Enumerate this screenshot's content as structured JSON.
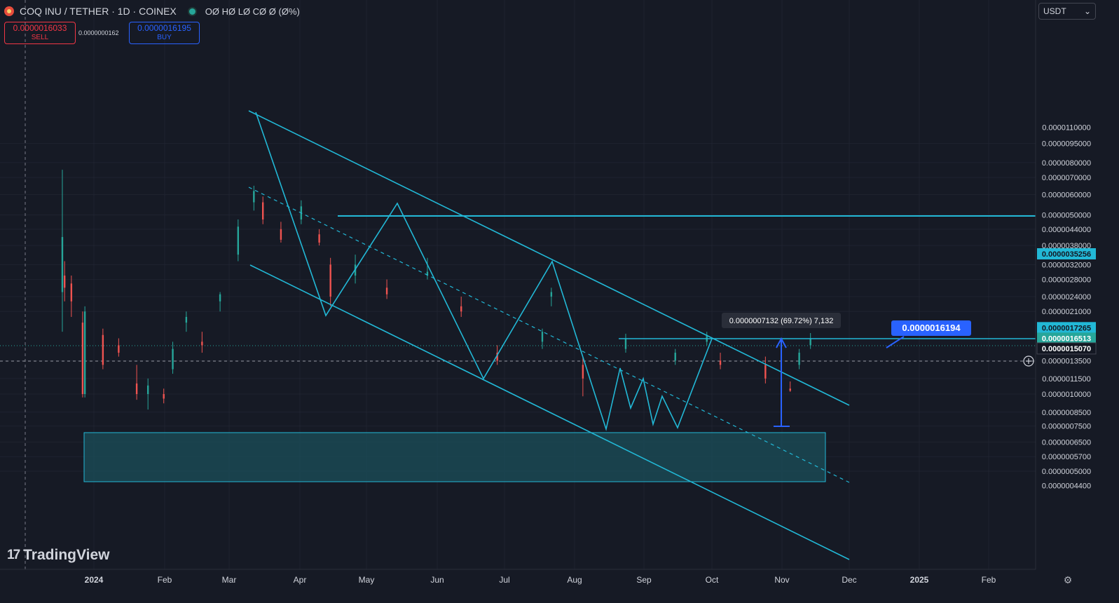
{
  "header": {
    "symbol_title": "COQ INU / TETHER · 1D · COINEX",
    "ohlc": "OØ HØ LØ CØ Ø (Ø%)"
  },
  "trade": {
    "sell_price": "0.0000016033",
    "sell_label": "SELL",
    "spread": "0.0000000162",
    "buy_price": "0.0000016195",
    "buy_label": "BUY"
  },
  "currency_select": {
    "value": "USDT",
    "arrow": "⌄"
  },
  "branding": {
    "mark": "17",
    "name": "TradingView"
  },
  "icons": {
    "settings": "gear-icon",
    "crosshair_add": "plus-circle-icon"
  },
  "colors": {
    "background": "#161a25",
    "up": "#26a69a",
    "down": "#ef5350",
    "drawing": "#22b8d6",
    "zone_fill": "#1b4f5a",
    "label_blue": "#2962ff"
  },
  "chart_data": {
    "type": "candlestick",
    "scale": "log",
    "x_ticks": [
      "2024",
      "Feb",
      "Mar",
      "Apr",
      "May",
      "Jun",
      "Jul",
      "Aug",
      "Sep",
      "Oct",
      "Nov",
      "Dec",
      "2025",
      "Feb"
    ],
    "y_ticks": [
      "0.0000095000",
      "0.0000080000",
      "0.0000070000",
      "0.0000060000",
      "0.0000050000",
      "0.0000044000",
      "0.0000038000",
      "0.0000032000",
      "0.0000028000",
      "0.0000024000",
      "0.0000021000",
      "0.0000013500",
      "0.0000011500",
      "0.0000010000",
      "0.0000008500",
      "0.0000007500",
      "0.0000006500",
      "0.0000005700",
      "0.0000005000"
    ],
    "y_labels_partial": [
      "0.0000110000",
      "0.0000004400"
    ],
    "price_badges": [
      {
        "value": "0.0000035256",
        "kind": "horizontal-line"
      },
      {
        "value": "0.0000017265",
        "kind": "resistance"
      },
      {
        "value": "0.0000016513",
        "kind": "last-price"
      },
      {
        "value": "0.0000015070",
        "kind": "crosshair"
      }
    ],
    "annotations": {
      "measure_text": "0.0000007132 (69.72%) 7,132",
      "price_label": "0.0000016194"
    },
    "candle_samples": [
      {
        "date": "2023-12-18",
        "o": 2.5e-06,
        "h": 7.5e-06,
        "l": 1.75e-06,
        "c": 4.1e-06
      },
      {
        "date": "2023-12-19",
        "o": 2.9e-06,
        "h": 3.3e-06,
        "l": 2.3e-06,
        "c": 2.6e-06
      },
      {
        "date": "2023-12-22",
        "o": 2.7e-06,
        "h": 2.9e-06,
        "l": 2e-06,
        "c": 2.3e-06
      },
      {
        "date": "2023-12-27",
        "o": 1.9e-06,
        "h": 2.1e-06,
        "l": 9.7e-07,
        "c": 1e-06
      },
      {
        "date": "2023-12-28",
        "o": 1e-06,
        "h": 2.2e-06,
        "l": 9.7e-07,
        "c": 2.1e-06
      },
      {
        "date": "2024-01-05",
        "o": 1.7e-06,
        "h": 1.8e-06,
        "l": 1.25e-06,
        "c": 1.3e-06
      },
      {
        "date": "2024-01-12",
        "o": 1.55e-06,
        "h": 1.65e-06,
        "l": 1.4e-06,
        "c": 1.45e-06
      },
      {
        "date": "2024-01-20",
        "o": 1.1e-06,
        "h": 1.3e-06,
        "l": 9.5e-07,
        "c": 1e-06
      },
      {
        "date": "2024-01-25",
        "o": 1e-06,
        "h": 1.15e-06,
        "l": 8.7e-07,
        "c": 1.08e-06
      },
      {
        "date": "2024-02-01",
        "o": 1e-06,
        "h": 1.05e-06,
        "l": 9.2e-07,
        "c": 9.6e-07
      },
      {
        "date": "2024-02-05",
        "o": 1.25e-06,
        "h": 1.6e-06,
        "l": 1.2e-06,
        "c": 1.5e-06
      },
      {
        "date": "2024-02-11",
        "o": 1.9e-06,
        "h": 2.1e-06,
        "l": 1.75e-06,
        "c": 2e-06
      },
      {
        "date": "2024-02-18",
        "o": 1.6e-06,
        "h": 1.75e-06,
        "l": 1.45e-06,
        "c": 1.55e-06
      },
      {
        "date": "2024-02-26",
        "o": 2.3e-06,
        "h": 2.5e-06,
        "l": 2.1e-06,
        "c": 2.45e-06
      },
      {
        "date": "2024-03-05",
        "o": 3.5e-06,
        "h": 4.8e-06,
        "l": 3.3e-06,
        "c": 4.5e-06
      },
      {
        "date": "2024-03-12",
        "o": 5.6e-06,
        "h": 6.5e-06,
        "l": 5.2e-06,
        "c": 6.2e-06
      },
      {
        "date": "2024-03-16",
        "o": 5.6e-06,
        "h": 5.9e-06,
        "l": 4.6e-06,
        "c": 4.8e-06
      },
      {
        "date": "2024-03-24",
        "o": 4.4e-06,
        "h": 4.7e-06,
        "l": 3.9e-06,
        "c": 4e-06
      },
      {
        "date": "2024-04-02",
        "o": 4.8e-06,
        "h": 5.7e-06,
        "l": 4.6e-06,
        "c": 5.4e-06
      },
      {
        "date": "2024-04-10",
        "o": 4.2e-06,
        "h": 4.4e-06,
        "l": 3.8e-06,
        "c": 3.9e-06
      },
      {
        "date": "2024-04-15",
        "o": 3.2e-06,
        "h": 3.4e-06,
        "l": 2.2e-06,
        "c": 2.4e-06
      },
      {
        "date": "2024-04-26",
        "o": 2.9e-06,
        "h": 3.5e-06,
        "l": 2.7e-06,
        "c": 3.2e-06
      },
      {
        "date": "2024-05-10",
        "o": 2.6e-06,
        "h": 2.8e-06,
        "l": 2.35e-06,
        "c": 2.45e-06
      },
      {
        "date": "2024-05-28",
        "o": 2.9e-06,
        "h": 3.4e-06,
        "l": 2.8e-06,
        "c": 3e-06
      },
      {
        "date": "2024-06-12",
        "o": 2.2e-06,
        "h": 2.4e-06,
        "l": 2e-06,
        "c": 2.1e-06
      },
      {
        "date": "2024-06-28",
        "o": 1.45e-06,
        "h": 1.55e-06,
        "l": 1.3e-06,
        "c": 1.35e-06
      },
      {
        "date": "2024-07-18",
        "o": 1.6e-06,
        "h": 1.8e-06,
        "l": 1.5e-06,
        "c": 1.75e-06
      },
      {
        "date": "2024-07-22",
        "o": 2.4e-06,
        "h": 2.6e-06,
        "l": 2.2e-06,
        "c": 2.5e-06
      },
      {
        "date": "2024-08-05",
        "o": 1.3e-06,
        "h": 1.4e-06,
        "l": 9.8e-07,
        "c": 1.15e-06
      },
      {
        "date": "2024-08-24",
        "o": 1.5e-06,
        "h": 1.72e-06,
        "l": 1.45e-06,
        "c": 1.65e-06
      },
      {
        "date": "2024-09-15",
        "o": 1.35e-06,
        "h": 1.5e-06,
        "l": 1.3e-06,
        "c": 1.45e-06
      },
      {
        "date": "2024-09-29",
        "o": 1.6e-06,
        "h": 1.75e-06,
        "l": 1.55e-06,
        "c": 1.7e-06
      },
      {
        "date": "2024-10-05",
        "o": 1.35e-06,
        "h": 1.45e-06,
        "l": 1.25e-06,
        "c": 1.3e-06
      },
      {
        "date": "2024-10-25",
        "o": 1.3e-06,
        "h": 1.4e-06,
        "l": 1.1e-06,
        "c": 1.15e-06
      },
      {
        "date": "2024-11-05",
        "o": 1.05e-06,
        "h": 1.12e-06,
        "l": 1.02e-06,
        "c": 1.03e-06
      },
      {
        "date": "2024-11-09",
        "o": 1.3e-06,
        "h": 1.5e-06,
        "l": 1.25e-06,
        "c": 1.45e-06
      },
      {
        "date": "2024-11-14",
        "o": 1.55e-06,
        "h": 1.73e-06,
        "l": 1.5e-06,
        "c": 1.65e-06
      }
    ]
  }
}
